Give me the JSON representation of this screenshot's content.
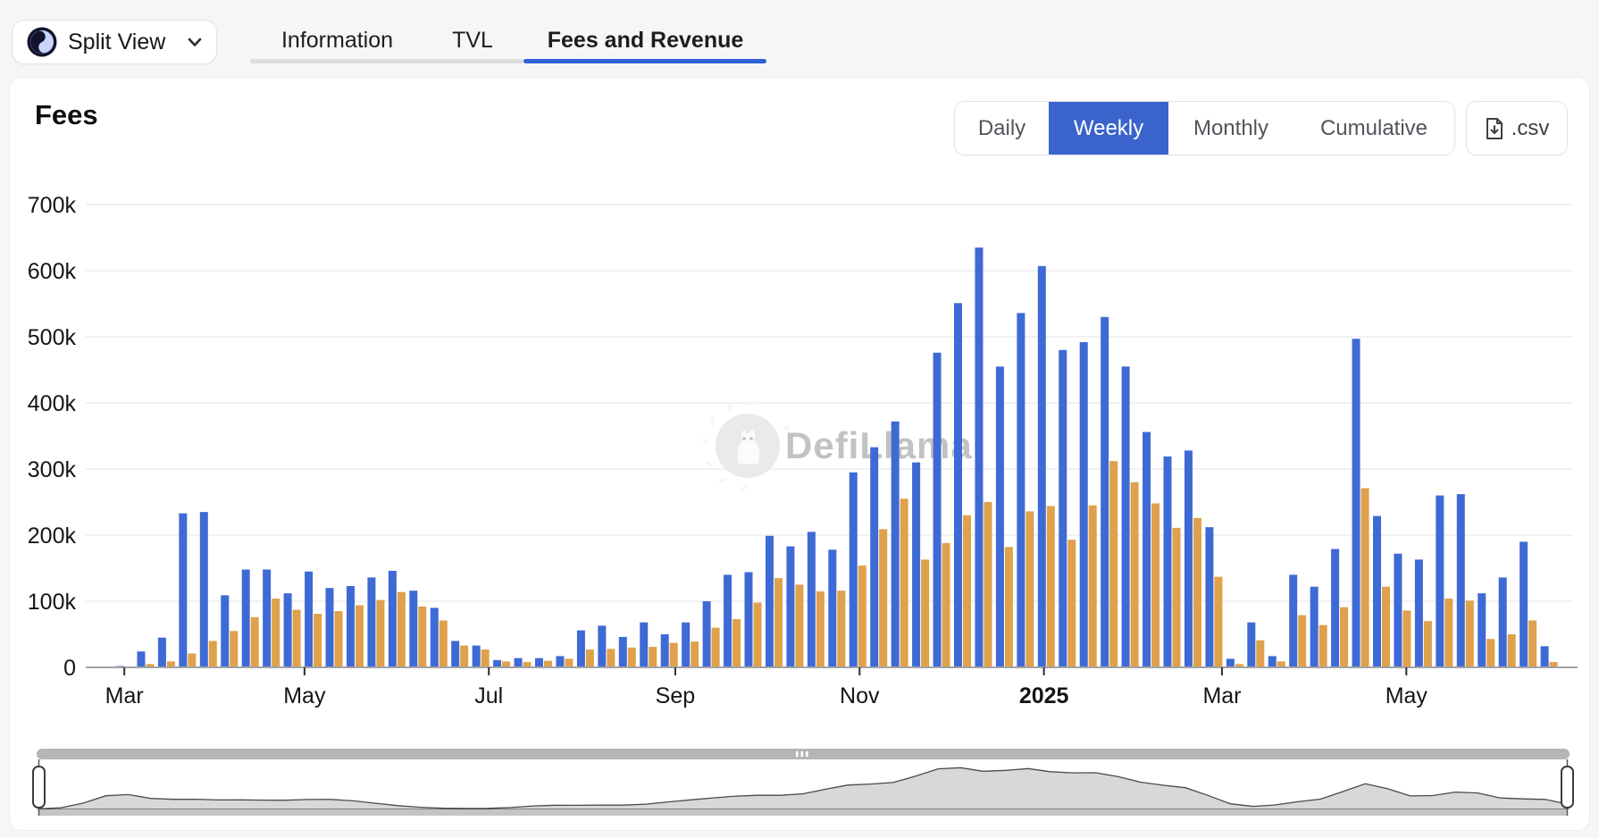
{
  "header": {
    "split_view_label": "Split View",
    "tabs": [
      {
        "label": "Information",
        "active": false
      },
      {
        "label": "TVL",
        "active": false
      },
      {
        "label": "Fees and Revenue",
        "active": true
      }
    ]
  },
  "toolbar": {
    "title": "Fees",
    "range_buttons": [
      {
        "label": "Daily",
        "active": false
      },
      {
        "label": "Weekly",
        "active": true
      },
      {
        "label": "Monthly",
        "active": false
      },
      {
        "label": "Cumulative",
        "active": false
      }
    ],
    "csv_label": ".csv"
  },
  "watermark": {
    "text": "DefiLlama"
  },
  "colors": {
    "fees_bar": "#3e6ad5",
    "revenue_bar": "#dfa14b",
    "active_button_bg": "#3a63cb",
    "tab_underline_active": "#2f62d9",
    "tab_underline_inactive": "#dcdcde",
    "axis_text": "#151515",
    "grid_line": "#f1f1f3",
    "minimap_fill": "#d8d8d8",
    "minimap_stroke": "#4b4b4b",
    "scrollbar_track": "#b5b5b7"
  },
  "chart_data": {
    "type": "bar",
    "title": "Fees",
    "granularity": "Weekly",
    "unit": "USD",
    "value_suffix": "k",
    "ylim_k": [
      0,
      700
    ],
    "y_ticks": [
      "700k",
      "600k",
      "500k",
      "400k",
      "300k",
      "200k",
      "100k",
      "0"
    ],
    "x_ticks": [
      {
        "label": "Mar",
        "week": 0.2,
        "bold": false
      },
      {
        "label": "May",
        "week": 8.8,
        "bold": false
      },
      {
        "label": "Jul",
        "week": 17.6,
        "bold": false
      },
      {
        "label": "Sep",
        "week": 26.5,
        "bold": false
      },
      {
        "label": "Nov",
        "week": 35.3,
        "bold": false
      },
      {
        "label": "2025",
        "week": 44.1,
        "bold": true
      },
      {
        "label": "Mar",
        "week": 52.6,
        "bold": false
      },
      {
        "label": "May",
        "week": 61.4,
        "bold": false
      }
    ],
    "grid": true,
    "legend": "none",
    "weeks": 69,
    "series": [
      {
        "name": "Fees",
        "color": "#3e6ad5",
        "values_k": [
          2,
          24,
          45,
          233,
          235,
          109,
          148,
          148,
          112,
          145,
          120,
          123,
          136,
          146,
          116,
          90,
          40,
          33,
          11,
          14,
          14,
          17,
          56,
          63,
          46,
          68,
          50,
          68,
          100,
          140,
          144,
          199,
          183,
          205,
          178,
          295,
          333,
          372,
          310,
          476,
          551,
          635,
          455,
          536,
          607,
          480,
          492,
          530,
          455,
          356,
          319,
          328,
          212,
          13,
          68,
          17,
          140,
          122,
          179,
          497,
          229,
          172,
          163,
          260,
          262,
          112,
          136,
          190,
          32
        ]
      },
      {
        "name": "Revenue",
        "color": "#dfa14b",
        "values_k": [
          1,
          5,
          9,
          21,
          40,
          55,
          76,
          104,
          87,
          81,
          85,
          94,
          102,
          114,
          92,
          71,
          33,
          27,
          9,
          8,
          10,
          13,
          27,
          28,
          30,
          31,
          37,
          39,
          60,
          73,
          98,
          135,
          125,
          115,
          116,
          154,
          209,
          255,
          163,
          188,
          230,
          250,
          182,
          236,
          244,
          193,
          245,
          312,
          280,
          248,
          211,
          226,
          137,
          5,
          41,
          9,
          79,
          64,
          91,
          271,
          122,
          86,
          70,
          104,
          101,
          43,
          50,
          71,
          8
        ]
      }
    ]
  },
  "minimap": {
    "grip": "|||"
  }
}
